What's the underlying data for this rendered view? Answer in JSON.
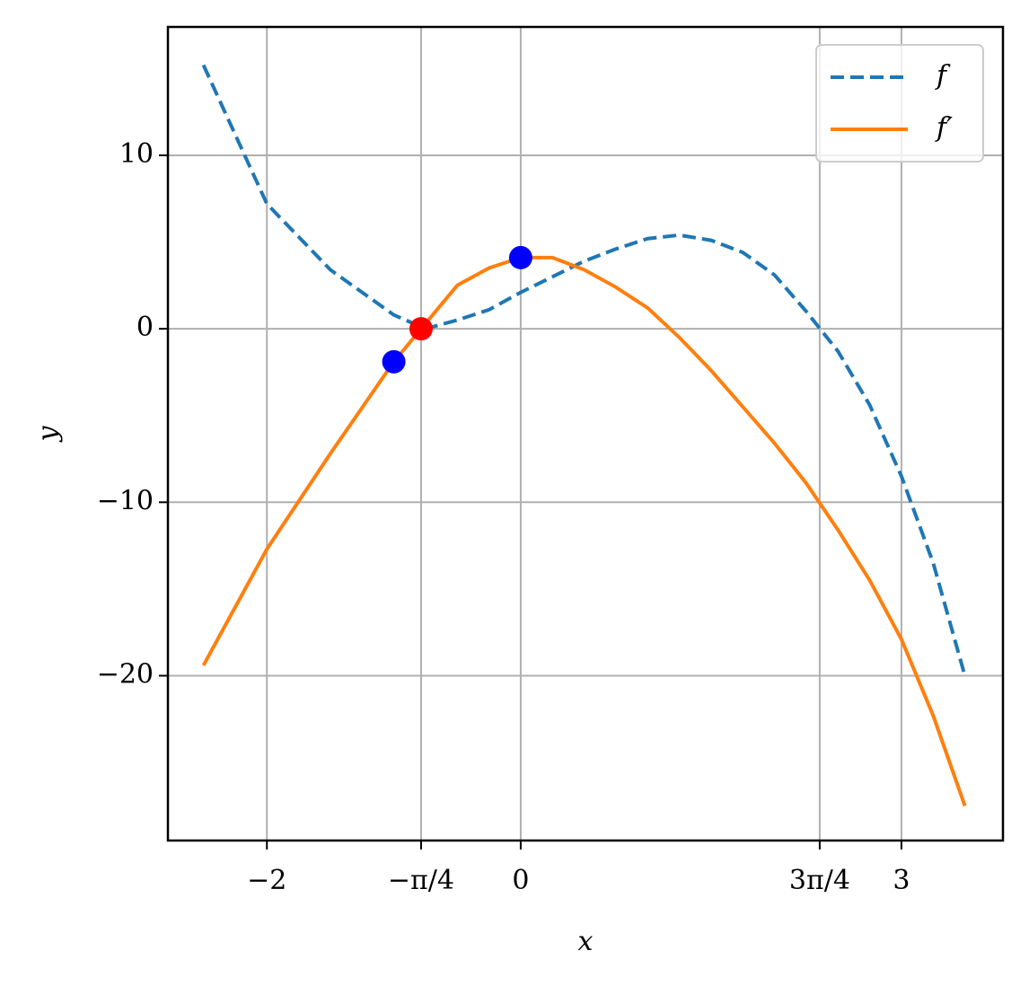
{
  "chart_data": {
    "type": "line",
    "x_label": "x",
    "y_label": "y",
    "x": [
      -2.5,
      -2,
      -1.5,
      -1,
      -0.75,
      -0.5,
      -0.25,
      0,
      0.25,
      0.5,
      0.75,
      1,
      1.25,
      1.5,
      1.75,
      2,
      2.25,
      2.5,
      2.75,
      3,
      3.25,
      3.5
    ],
    "series": [
      {
        "name": "f",
        "color": "#1f77b4",
        "linestyle": "dashed",
        "values": [
          15.2,
          7.2,
          3.4,
          0.8,
          0.0,
          0.5,
          1.1,
          2.1,
          3.0,
          3.9,
          4.6,
          5.2,
          5.4,
          5.1,
          4.4,
          3.1,
          1.0,
          -1.3,
          -4.4,
          -8.5,
          -13.5,
          -20.0
        ]
      },
      {
        "name": "f′",
        "color": "#ff7f0e",
        "linestyle": "solid",
        "values": [
          -19.4,
          -12.7,
          -7.2,
          -1.9,
          0.3,
          2.5,
          3.5,
          4.1,
          4.1,
          3.4,
          2.4,
          1.2,
          -0.5,
          -2.4,
          -4.5,
          -6.6,
          -8.9,
          -11.6,
          -14.5,
          -17.9,
          -22.3,
          -27.5
        ]
      }
    ],
    "markers": [
      {
        "x": -1,
        "y": -1.9,
        "color": "#0000ff"
      },
      {
        "x": 0,
        "y": 4.1,
        "color": "#0000ff"
      },
      {
        "x": -0.785,
        "y": 0,
        "color": "#ff0000"
      }
    ],
    "xlim": [
      -2.78,
      3.8
    ],
    "ylim": [
      -29.5,
      17.4
    ],
    "xticks": [
      {
        "value": -2,
        "label": "−2"
      },
      {
        "value": -0.785,
        "label": "−π/4"
      },
      0,
      {
        "value": 2.356,
        "label": "3π/4"
      },
      3
    ],
    "yticks": [
      {
        "value": -20,
        "label": "−20"
      },
      {
        "value": -10,
        "label": "−10"
      },
      0,
      10
    ],
    "grid": true,
    "legend": "upper right"
  }
}
